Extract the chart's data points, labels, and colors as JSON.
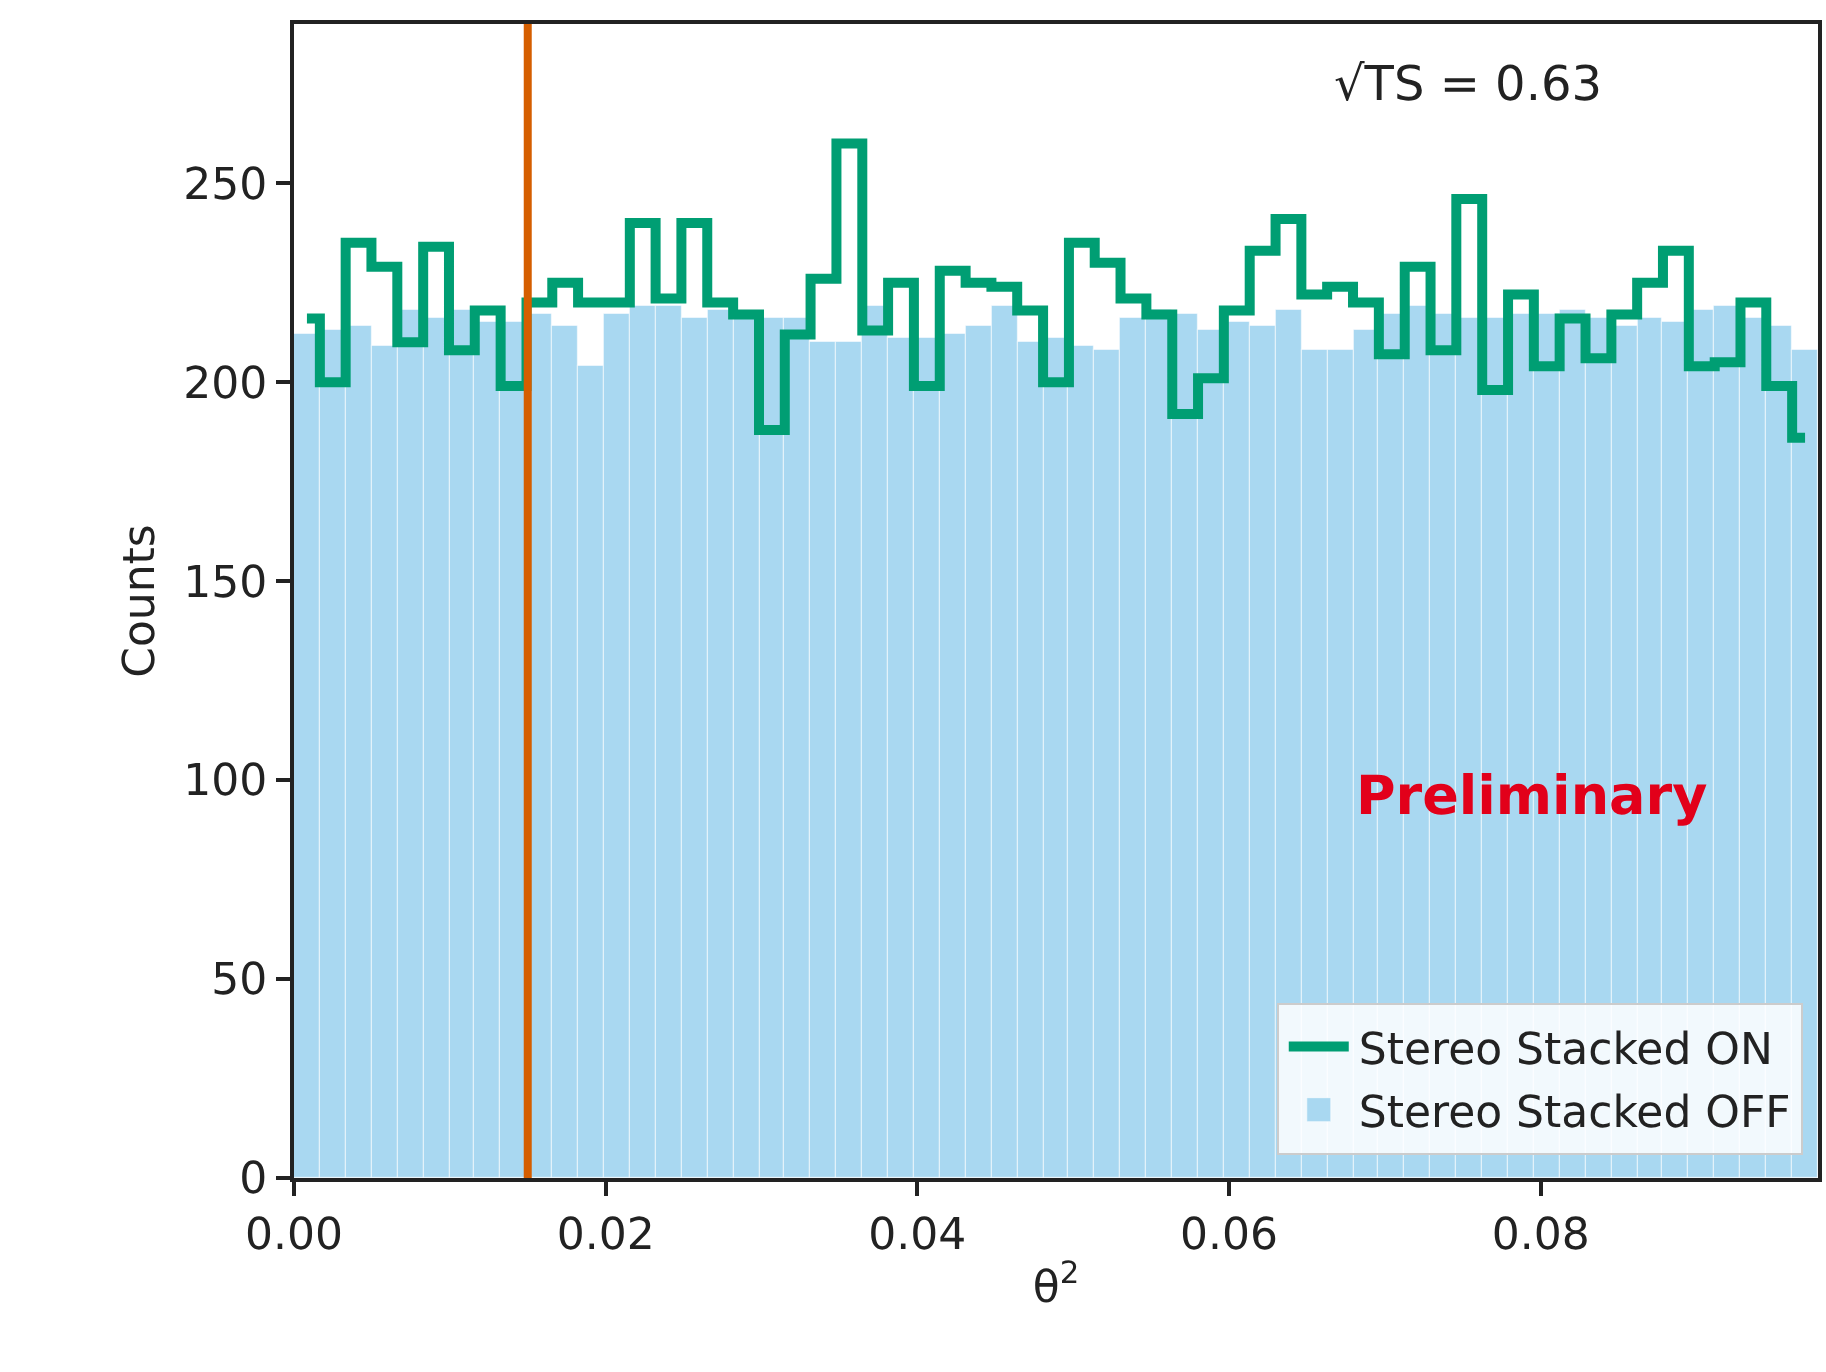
{
  "chart_data": {
    "type": "histogram",
    "xlabel": "θ$^{2}$",
    "ylabel": "Counts",
    "bins": [
      0,
      0.00166,
      0.00332,
      0.00497,
      0.00663,
      0.00829,
      0.00995,
      0.0116,
      0.01326,
      0.01492,
      0.01658,
      0.01823,
      0.01989,
      0.02155,
      0.02321,
      0.02486,
      0.02652,
      0.02818,
      0.02984,
      0.03149,
      0.03315,
      0.03481,
      0.03647,
      0.03812,
      0.03978,
      0.04144,
      0.0431,
      0.04476,
      0.04641,
      0.04807,
      0.04973,
      0.05139,
      0.05304,
      0.0547,
      0.05636,
      0.05802,
      0.05967,
      0.06133,
      0.06299,
      0.06465,
      0.0663,
      0.06796,
      0.06962,
      0.07128,
      0.07293,
      0.07459,
      0.07625,
      0.07791,
      0.07956,
      0.08122,
      0.08288,
      0.08454,
      0.0862,
      0.08785,
      0.08951,
      0.09117,
      0.09283,
      0.09448,
      0.09614,
      0.0978
    ],
    "series": [
      {
        "name": "Stereo Stacked ON",
        "type": "step",
        "color": "#009e73",
        "x": [
          0.00083,
          0.00249,
          0.00414,
          0.0058,
          0.00746,
          0.00912,
          0.01077,
          0.01243,
          0.01409,
          0.01575,
          0.0174,
          0.01906,
          0.02072,
          0.02238,
          0.02403,
          0.02569,
          0.02735,
          0.02901,
          0.03067,
          0.03232,
          0.03398,
          0.03564,
          0.0373,
          0.03895,
          0.04061,
          0.04227,
          0.04393,
          0.04558,
          0.04724,
          0.0489,
          0.05056,
          0.05221,
          0.05387,
          0.05553,
          0.05719,
          0.05884,
          0.0605,
          0.06216,
          0.06382,
          0.06547,
          0.06713,
          0.06879,
          0.07045,
          0.07211,
          0.07376,
          0.07542,
          0.07708,
          0.07874,
          0.08039,
          0.08205,
          0.08371,
          0.08537,
          0.08702,
          0.08868,
          0.09034,
          0.092,
          0.09365,
          0.09531,
          0.09697
        ],
        "values": [
          216,
          200,
          235,
          229,
          210,
          234,
          208,
          218,
          199,
          220,
          225,
          220,
          220,
          240,
          221,
          240,
          220,
          217,
          188,
          212,
          226,
          260,
          213,
          225,
          199,
          228,
          225,
          224,
          218,
          200,
          235,
          230,
          221,
          217,
          192,
          201,
          218,
          233,
          241,
          222,
          224,
          220,
          207,
          229,
          208,
          246,
          198,
          222,
          204,
          216,
          206,
          217,
          225,
          233,
          204,
          205,
          220,
          199,
          186
        ]
      },
      {
        "name": "Stereo Stacked OFF",
        "color": "#a9d8f1",
        "values": [
          212,
          213,
          214,
          209,
          218,
          216,
          218,
          215,
          215,
          217,
          214,
          204,
          217,
          219,
          219,
          216,
          218,
          216,
          216,
          216,
          210,
          210,
          219,
          211,
          211,
          212,
          214,
          219,
          210,
          211,
          209,
          208,
          216,
          218,
          217,
          213,
          215,
          214,
          218,
          208,
          208,
          213,
          217,
          219,
          217,
          216,
          216,
          217,
          217,
          218,
          216,
          214,
          216,
          215,
          218,
          219,
          216,
          214,
          208
        ]
      }
    ],
    "xlim": [
      0,
      0.0978
    ],
    "ylim": [
      0,
      290
    ],
    "xticks": [
      {
        "value": 0,
        "label": "0.00"
      },
      0.02,
      0.04,
      0.06,
      0.08
    ],
    "yticks": [
      0,
      50,
      100,
      150,
      200,
      250
    ],
    "ref_lines": [
      {
        "axis": "x",
        "value": 0.015,
        "color": "#d55e00"
      }
    ],
    "annotations": [
      "√TS = 0.63",
      "Preliminary"
    ],
    "legend": "bottom right"
  }
}
